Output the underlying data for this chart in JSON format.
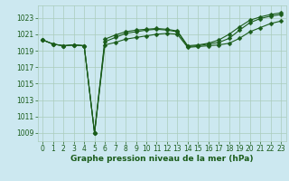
{
  "title": "Graphe pression niveau de la mer (hPa)",
  "background_color": "#cce8f0",
  "grid_color": "#aaccbb",
  "line_color": "#1a5c1a",
  "x_ticks": [
    0,
    1,
    2,
    3,
    4,
    5,
    6,
    7,
    8,
    9,
    10,
    11,
    12,
    13,
    14,
    15,
    16,
    17,
    18,
    19,
    20,
    21,
    22,
    23
  ],
  "y_ticks": [
    1009,
    1011,
    1013,
    1015,
    1017,
    1019,
    1021,
    1023
  ],
  "ylim": [
    1008.0,
    1024.5
  ],
  "xlim": [
    -0.5,
    23.5
  ],
  "line1": [
    1020.3,
    1019.8,
    1019.6,
    1019.7,
    1019.6,
    1009.0,
    1019.7,
    1020.0,
    1020.4,
    1020.6,
    1020.8,
    1021.0,
    1021.1,
    1021.0,
    1019.4,
    1019.5,
    1019.6,
    1019.7,
    1019.9,
    1020.5,
    1021.3,
    1021.8,
    1022.3,
    1022.6
  ],
  "line2": [
    1020.3,
    1019.8,
    1019.6,
    1019.7,
    1019.6,
    1009.0,
    1020.1,
    1020.6,
    1021.1,
    1021.3,
    1021.5,
    1021.6,
    1021.5,
    1021.3,
    1019.5,
    1019.6,
    1019.8,
    1020.0,
    1020.5,
    1021.5,
    1022.4,
    1022.9,
    1023.2,
    1023.4
  ],
  "line3": [
    1020.3,
    1019.8,
    1019.6,
    1019.7,
    1019.6,
    1009.0,
    1020.4,
    1020.9,
    1021.3,
    1021.5,
    1021.6,
    1021.7,
    1021.6,
    1021.4,
    1019.6,
    1019.7,
    1019.9,
    1020.3,
    1021.0,
    1021.9,
    1022.7,
    1023.1,
    1023.4,
    1023.6
  ],
  "marker_size": 2.5,
  "linewidth": 0.8,
  "title_fontsize": 6.5,
  "tick_fontsize": 5.5
}
